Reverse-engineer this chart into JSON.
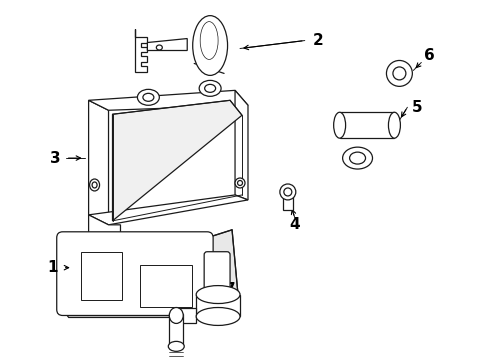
{
  "bg_color": "#ffffff",
  "line_color": "#1a1a1a",
  "text_color": "#000000",
  "label_fontsize": 11,
  "figsize": [
    4.9,
    3.6
  ],
  "dpi": 100
}
